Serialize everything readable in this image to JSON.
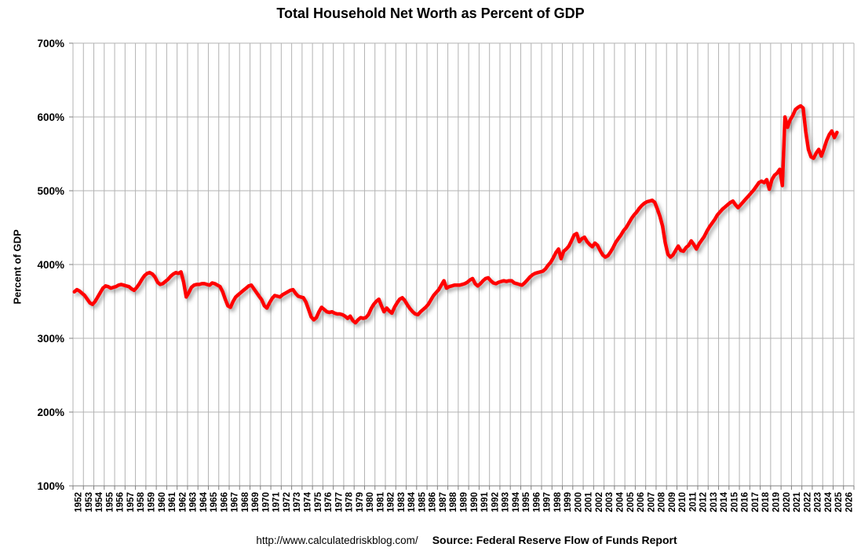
{
  "chart_data": {
    "type": "line",
    "title": "Total Household Net Worth as Percent of GDP",
    "ylabel": "Percent of GDP",
    "footer_url": "http://www.calculatedriskblog.com/",
    "footer_source": "Source: Federal Reserve Flow of Funds Report",
    "grid": true,
    "legend_position": "none",
    "line_color": "#FF0000",
    "grid_color": "#b3b3b3",
    "axis_color": "#7f7f7f",
    "ylim": [
      100,
      700
    ],
    "y_tick_step": 100,
    "y_tick_labels": [
      "700%",
      "600%",
      "500%",
      "400%",
      "300%",
      "200%",
      "100%"
    ],
    "x_tick_labels": [
      "1952",
      "1953",
      "1954",
      "1955",
      "1956",
      "1957",
      "1958",
      "1959",
      "1960",
      "1961",
      "1962",
      "1963",
      "1964",
      "1965",
      "1966",
      "1967",
      "1968",
      "1969",
      "1970",
      "1971",
      "1972",
      "1973",
      "1974",
      "1975",
      "1976",
      "1977",
      "1978",
      "1979",
      "1980",
      "1981",
      "1982",
      "1983",
      "1984",
      "1985",
      "1986",
      "1987",
      "1988",
      "1989",
      "1990",
      "1991",
      "1992",
      "1993",
      "1994",
      "1995",
      "1996",
      "1997",
      "1998",
      "1999",
      "2000",
      "2001",
      "2002",
      "2003",
      "2004",
      "2005",
      "2006",
      "2007",
      "2008",
      "2009",
      "2010",
      "2011",
      "2012",
      "2013",
      "2014",
      "2015",
      "2016",
      "2017",
      "2018",
      "2019",
      "2020",
      "2021",
      "2022",
      "2023",
      "2024",
      "2025",
      "2026"
    ],
    "series": [
      {
        "name": "Total Household Net Worth as Percent of GDP",
        "frequency": "quarterly",
        "start_year": 1952,
        "unit": "% of GDP",
        "values": [
          363,
          366,
          364,
          361,
          358,
          353,
          348,
          346,
          350,
          356,
          362,
          368,
          371,
          370,
          368,
          369,
          370,
          372,
          373,
          372,
          371,
          370,
          367,
          365,
          369,
          374,
          380,
          385,
          388,
          389,
          387,
          383,
          376,
          373,
          374,
          377,
          380,
          384,
          387,
          389,
          388,
          390,
          376,
          356,
          362,
          369,
          372,
          373,
          373,
          374,
          374,
          373,
          372,
          375,
          374,
          372,
          370,
          363,
          353,
          344,
          342,
          350,
          356,
          359,
          362,
          365,
          368,
          371,
          372,
          367,
          362,
          357,
          352,
          344,
          341,
          348,
          354,
          358,
          357,
          356,
          359,
          361,
          363,
          365,
          366,
          361,
          357,
          356,
          355,
          349,
          339,
          329,
          325,
          328,
          336,
          342,
          339,
          336,
          335,
          336,
          334,
          333,
          333,
          332,
          330,
          327,
          330,
          324,
          321,
          325,
          328,
          327,
          328,
          332,
          340,
          346,
          350,
          353,
          344,
          336,
          341,
          337,
          334,
          342,
          348,
          353,
          355,
          351,
          345,
          340,
          336,
          333,
          332,
          336,
          339,
          342,
          346,
          352,
          358,
          362,
          366,
          372,
          378,
          368,
          370,
          371,
          372,
          372,
          372,
          373,
          374,
          376,
          379,
          381,
          374,
          371,
          374,
          378,
          381,
          382,
          378,
          375,
          374,
          376,
          377,
          378,
          377,
          378,
          378,
          375,
          374,
          373,
          372,
          375,
          379,
          383,
          386,
          388,
          389,
          390,
          391,
          394,
          399,
          403,
          409,
          416,
          421,
          408,
          418,
          421,
          425,
          432,
          440,
          442,
          431,
          435,
          437,
          431,
          427,
          424,
          429,
          426,
          419,
          413,
          410,
          412,
          417,
          423,
          430,
          435,
          440,
          446,
          450,
          456,
          462,
          467,
          471,
          476,
          480,
          483,
          485,
          486,
          487,
          484,
          475,
          465,
          452,
          430,
          414,
          410,
          413,
          419,
          425,
          419,
          418,
          423,
          426,
          432,
          427,
          421,
          428,
          433,
          438,
          445,
          451,
          456,
          461,
          467,
          471,
          475,
          478,
          481,
          484,
          486,
          481,
          477,
          481,
          485,
          489,
          493,
          497,
          501,
          506,
          511,
          513,
          511,
          515,
          502,
          515,
          521,
          524,
          529,
          507,
          600,
          586,
          596,
          602,
          610,
          613,
          615,
          612,
          580,
          556,
          546,
          544,
          551,
          556,
          547,
          557,
          568,
          576,
          581,
          572,
          579
        ]
      }
    ]
  }
}
